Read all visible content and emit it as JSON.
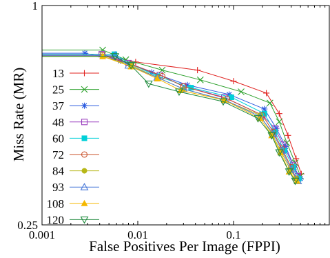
{
  "chart_data": {
    "type": "line",
    "title": "",
    "xlabel": "False Positives Per Image (FPPI)",
    "ylabel": "Miss Rate (MR)",
    "xscale": "log",
    "yscale": "log",
    "xlim": [
      0.001,
      1
    ],
    "ylim": [
      0.25,
      1
    ],
    "xticks": [
      {
        "value": 0.001,
        "label": "0.001"
      },
      {
        "value": 0.01,
        "label": "0.01"
      },
      {
        "value": 0.1,
        "label": "0.1"
      }
    ],
    "yticks": [
      {
        "value": 1,
        "label": "1"
      },
      {
        "value": 0.25,
        "label": "0.25"
      }
    ],
    "grid": false,
    "legend_position": "left",
    "series": [
      {
        "name": "13",
        "color": "#e0201e",
        "marker": "plus",
        "x": [
          0.001,
          0.0043,
          0.0095,
          0.042,
          0.1,
          0.22,
          0.3,
          0.37,
          0.45,
          0.51
        ],
        "y": [
          0.73,
          0.73,
          0.7,
          0.665,
          0.62,
          0.575,
          0.505,
          0.44,
          0.38,
          0.345
        ]
      },
      {
        "name": "25",
        "color": "#2aa02a",
        "marker": "cross",
        "x": [
          0.001,
          0.0043,
          0.0075,
          0.018,
          0.045,
          0.12,
          0.24,
          0.3,
          0.36,
          0.44,
          0.5
        ],
        "y": [
          0.755,
          0.755,
          0.71,
          0.665,
          0.625,
          0.58,
          0.54,
          0.48,
          0.42,
          0.37,
          0.34
        ]
      },
      {
        "name": "37",
        "color": "#2a5adf",
        "marker": "star",
        "x": [
          0.001,
          0.0028,
          0.0066,
          0.014,
          0.033,
          0.09,
          0.21,
          0.28,
          0.35,
          0.43,
          0.5
        ],
        "y": [
          0.74,
          0.74,
          0.705,
          0.655,
          0.605,
          0.57,
          0.52,
          0.46,
          0.41,
          0.36,
          0.335
        ]
      },
      {
        "name": "48",
        "color": "#9a3fbf",
        "marker": "square-open",
        "x": [
          0.001,
          0.0042,
          0.008,
          0.017,
          0.03,
          0.08,
          0.2,
          0.27,
          0.33,
          0.42,
          0.47
        ],
        "y": [
          0.735,
          0.735,
          0.695,
          0.645,
          0.6,
          0.56,
          0.5,
          0.46,
          0.415,
          0.365,
          0.34
        ]
      },
      {
        "name": "60",
        "color": "#00d0d8",
        "marker": "square-filled",
        "x": [
          0.001,
          0.0057,
          0.0085,
          0.016,
          0.036,
          0.095,
          0.21,
          0.27,
          0.34,
          0.42,
          0.48
        ],
        "y": [
          0.735,
          0.735,
          0.69,
          0.64,
          0.595,
          0.56,
          0.505,
          0.45,
          0.4,
          0.36,
          0.335
        ]
      },
      {
        "name": "72",
        "color": "#c8502a",
        "marker": "circle-open",
        "x": [
          0.001,
          0.0043,
          0.0085,
          0.018,
          0.03,
          0.085,
          0.2,
          0.26,
          0.32,
          0.4,
          0.45
        ],
        "y": [
          0.73,
          0.73,
          0.69,
          0.64,
          0.6,
          0.555,
          0.5,
          0.45,
          0.405,
          0.36,
          0.335
        ]
      },
      {
        "name": "84",
        "color": "#b7b717",
        "marker": "circle-filled",
        "x": [
          0.001,
          0.0043,
          0.0085,
          0.016,
          0.03,
          0.08,
          0.19,
          0.25,
          0.31,
          0.39,
          0.45
        ],
        "y": [
          0.725,
          0.725,
          0.685,
          0.635,
          0.59,
          0.55,
          0.5,
          0.445,
          0.4,
          0.355,
          0.335
        ]
      },
      {
        "name": "93",
        "color": "#4a7ad9",
        "marker": "triangle-open",
        "x": [
          0.001,
          0.0058,
          0.008,
          0.016,
          0.03,
          0.082,
          0.19,
          0.26,
          0.32,
          0.4,
          0.47
        ],
        "y": [
          0.73,
          0.73,
          0.685,
          0.635,
          0.59,
          0.55,
          0.495,
          0.445,
          0.4,
          0.355,
          0.33
        ]
      },
      {
        "name": "108",
        "color": "#f5b800",
        "marker": "triangle-filled",
        "x": [
          0.001,
          0.0043,
          0.0085,
          0.016,
          0.028,
          0.08,
          0.19,
          0.25,
          0.31,
          0.38,
          0.46
        ],
        "y": [
          0.725,
          0.725,
          0.68,
          0.63,
          0.585,
          0.55,
          0.49,
          0.44,
          0.395,
          0.35,
          0.33
        ]
      },
      {
        "name": "120",
        "color": "#1e8a3c",
        "marker": "triangle-down-open",
        "x": [
          0.001,
          0.0058,
          0.0085,
          0.013,
          0.027,
          0.078,
          0.18,
          0.25,
          0.3,
          0.38,
          0.44
        ],
        "y": [
          0.725,
          0.725,
          0.685,
          0.61,
          0.58,
          0.545,
          0.49,
          0.44,
          0.395,
          0.35,
          0.33
        ]
      }
    ]
  }
}
